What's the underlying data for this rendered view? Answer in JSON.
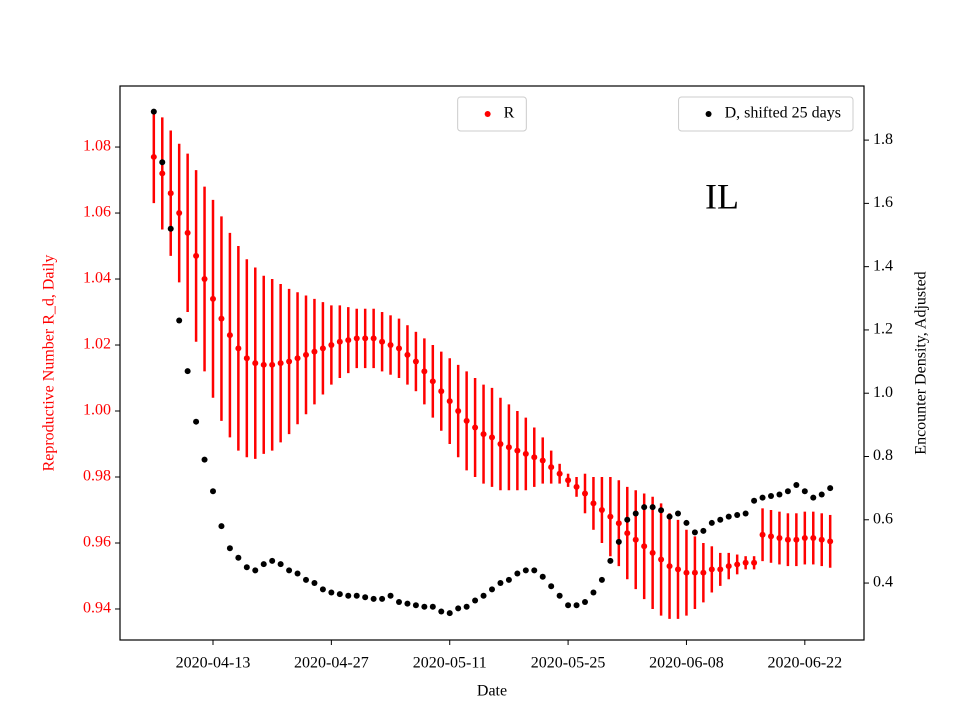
{
  "chart_data": {
    "type": "scatter",
    "xlabel": "Date",
    "ylabel": "Reproductive Number R_d, Daily",
    "y2label": "Encounter Density, Adjusted",
    "annotation": "IL",
    "x": [
      "2020-04-06",
      "2020-04-07",
      "2020-04-08",
      "2020-04-09",
      "2020-04-10",
      "2020-04-11",
      "2020-04-12",
      "2020-04-13",
      "2020-04-14",
      "2020-04-15",
      "2020-04-16",
      "2020-04-17",
      "2020-04-18",
      "2020-04-19",
      "2020-04-20",
      "2020-04-21",
      "2020-04-22",
      "2020-04-23",
      "2020-04-24",
      "2020-04-25",
      "2020-04-26",
      "2020-04-27",
      "2020-04-28",
      "2020-04-29",
      "2020-04-30",
      "2020-05-01",
      "2020-05-02",
      "2020-05-03",
      "2020-05-04",
      "2020-05-05",
      "2020-05-06",
      "2020-05-07",
      "2020-05-08",
      "2020-05-09",
      "2020-05-10",
      "2020-05-11",
      "2020-05-12",
      "2020-05-13",
      "2020-05-14",
      "2020-05-15",
      "2020-05-16",
      "2020-05-17",
      "2020-05-18",
      "2020-05-19",
      "2020-05-20",
      "2020-05-21",
      "2020-05-22",
      "2020-05-23",
      "2020-05-24",
      "2020-05-25",
      "2020-05-26",
      "2020-05-27",
      "2020-05-28",
      "2020-05-29",
      "2020-05-30",
      "2020-05-31",
      "2020-06-01",
      "2020-06-02",
      "2020-06-03",
      "2020-06-04",
      "2020-06-05",
      "2020-06-06",
      "2020-06-07",
      "2020-06-08",
      "2020-06-09",
      "2020-06-10",
      "2020-06-11",
      "2020-06-12",
      "2020-06-13",
      "2020-06-14",
      "2020-06-15",
      "2020-06-16",
      "2020-06-17",
      "2020-06-18",
      "2020-06-19",
      "2020-06-20",
      "2020-06-21",
      "2020-06-22",
      "2020-06-23",
      "2020-06-24",
      "2020-06-25"
    ],
    "xlim": [
      "2020-04-02",
      "2020-06-29"
    ],
    "xticks": [
      "2020-04-13",
      "2020-04-27",
      "2020-05-11",
      "2020-05-25",
      "2020-06-08",
      "2020-06-22"
    ],
    "ylim": [
      0.9306,
      1.0985
    ],
    "yticks": [
      0.94,
      0.96,
      0.98,
      {
        "value": 1,
        "label": "1.00"
      },
      1.02,
      1.04,
      1.06,
      1.08
    ],
    "y2lim": [
      0.22,
      1.971
    ],
    "y2ticks": [
      0.4,
      0.6,
      0.8,
      {
        "value": 1,
        "label": "1.0"
      },
      1.2,
      1.4,
      1.6,
      1.8
    ],
    "series": [
      {
        "name": "R",
        "color": "#ff0000",
        "legend": "upper center",
        "values": [
          1.077,
          1.072,
          1.066,
          1.06,
          1.054,
          1.047,
          1.04,
          1.034,
          1.028,
          1.023,
          1.019,
          1.016,
          1.0145,
          1.014,
          1.014,
          1.0145,
          1.015,
          1.016,
          1.017,
          1.018,
          1.019,
          1.02,
          1.021,
          1.0215,
          1.022,
          1.022,
          1.022,
          1.021,
          1.02,
          1.019,
          1.017,
          1.015,
          1.012,
          1.009,
          1.006,
          1.003,
          1.0,
          0.997,
          0.995,
          0.993,
          0.992,
          0.99,
          0.989,
          0.988,
          0.987,
          0.986,
          0.985,
          0.983,
          0.981,
          0.979,
          0.977,
          0.975,
          0.972,
          0.97,
          0.968,
          0.966,
          0.963,
          0.961,
          0.959,
          0.957,
          0.955,
          0.953,
          0.952,
          0.951,
          0.951,
          0.951,
          0.952,
          0.952,
          0.953,
          0.9535,
          0.954,
          0.954,
          0.9625,
          0.962,
          0.9615,
          0.961,
          0.961,
          0.9615,
          0.9615,
          0.961,
          0.9605
        ],
        "errors": [
          0.014,
          0.017,
          0.019,
          0.021,
          0.024,
          0.026,
          0.028,
          0.03,
          0.031,
          0.031,
          0.031,
          0.03,
          0.029,
          0.027,
          0.026,
          0.024,
          0.022,
          0.02,
          0.018,
          0.016,
          0.014,
          0.012,
          0.011,
          0.01,
          0.009,
          0.009,
          0.009,
          0.009,
          0.009,
          0.009,
          0.009,
          0.009,
          0.01,
          0.011,
          0.012,
          0.013,
          0.014,
          0.015,
          0.015,
          0.015,
          0.015,
          0.014,
          0.013,
          0.012,
          0.011,
          0.009,
          0.007,
          0.005,
          0.003,
          0.002,
          0.003,
          0.006,
          0.008,
          0.01,
          0.012,
          0.013,
          0.014,
          0.015,
          0.016,
          0.017,
          0.017,
          0.016,
          0.015,
          0.013,
          0.011,
          0.009,
          0.007,
          0.005,
          0.004,
          0.003,
          0.002,
          0.002,
          0.008,
          0.008,
          0.008,
          0.008,
          0.008,
          0.008,
          0.008,
          0.008,
          0.008
        ]
      },
      {
        "name": "D, shifted 25 days",
        "color": "#000000",
        "axis": "y2",
        "legend": "upper right",
        "values": [
          1.89,
          1.73,
          1.52,
          1.23,
          1.07,
          0.91,
          0.79,
          0.69,
          0.58,
          0.51,
          0.48,
          0.45,
          0.44,
          0.46,
          0.47,
          0.46,
          0.44,
          0.43,
          0.41,
          0.4,
          0.38,
          0.37,
          0.365,
          0.36,
          0.36,
          0.355,
          0.35,
          0.35,
          0.36,
          0.34,
          0.335,
          0.33,
          0.325,
          0.325,
          0.31,
          0.305,
          0.32,
          0.325,
          0.345,
          0.36,
          0.38,
          0.4,
          0.41,
          0.43,
          0.44,
          0.44,
          0.42,
          0.39,
          0.36,
          0.33,
          0.33,
          0.34,
          0.37,
          0.41,
          0.47,
          0.53,
          0.6,
          0.62,
          0.64,
          0.64,
          0.63,
          0.61,
          0.62,
          0.59,
          0.56,
          0.565,
          0.59,
          0.6,
          0.61,
          0.615,
          0.62,
          0.66,
          0.67,
          0.675,
          0.68,
          0.69,
          0.71,
          0.69,
          0.67,
          0.68,
          0.7
        ]
      }
    ]
  }
}
